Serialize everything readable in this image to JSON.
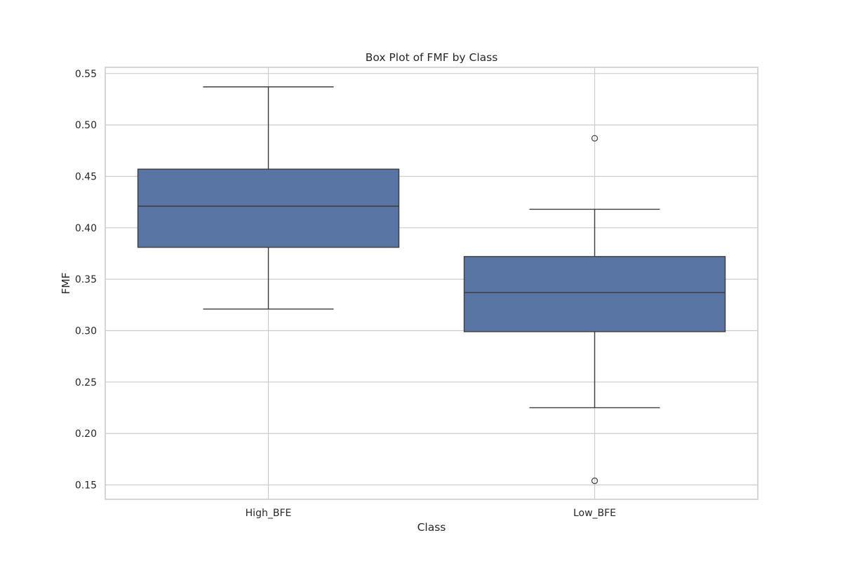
{
  "chart_data": {
    "type": "box",
    "title": "Box Plot of FMF by Class",
    "xlabel": "Class",
    "ylabel": "FMF",
    "ylim": [
      0.136,
      0.556
    ],
    "yticks": [
      0.15,
      0.2,
      0.25,
      0.3,
      0.35,
      0.4,
      0.45,
      0.5,
      0.55
    ],
    "ytick_labels": [
      "0.15",
      "0.20",
      "0.25",
      "0.30",
      "0.35",
      "0.40",
      "0.45",
      "0.50",
      "0.55"
    ],
    "grid": true,
    "categories": [
      "High_BFE",
      "Low_BFE"
    ],
    "boxes": [
      {
        "category": "High_BFE",
        "whisker_low": 0.321,
        "q1": 0.381,
        "median": 0.421,
        "q3": 0.457,
        "whisker_high": 0.537,
        "outliers": []
      },
      {
        "category": "Low_BFE",
        "whisker_low": 0.225,
        "q1": 0.299,
        "median": 0.337,
        "q3": 0.372,
        "whisker_high": 0.418,
        "outliers": [
          0.487,
          0.154
        ]
      }
    ],
    "colors": {
      "box_fill": "#5875a4",
      "line": "#3d3d3d",
      "grid": "#cccccc",
      "frame": "#cccccc"
    }
  }
}
